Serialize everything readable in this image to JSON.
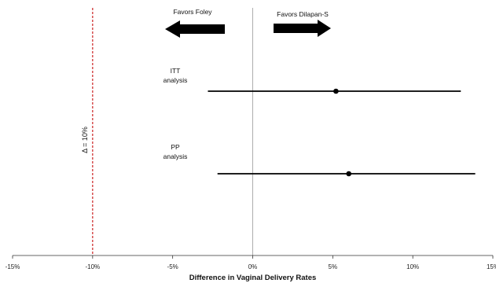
{
  "chart_data": {
    "type": "scatter",
    "subtype": "forest-plot",
    "xlabel": "Difference in Vaginal Delivery Rates",
    "xlim": [
      -15,
      15
    ],
    "xticks": [
      -15,
      -10,
      -5,
      0,
      5,
      10,
      15
    ],
    "xtick_labels": [
      "-15%",
      "-10%",
      "-5%",
      "0%",
      "5%",
      "10%",
      "15%"
    ],
    "grid": false,
    "reference_line": 0,
    "margin_line": {
      "x": -10,
      "label": "Δ = 10%",
      "color": "#cc2222",
      "style": "dashed"
    },
    "favor_labels": {
      "left": "Favors Foley",
      "right": "Favors Dilapan-S"
    },
    "rows": [
      {
        "label_line1": "ITT",
        "label_line2": "analysis",
        "estimate": 5.2,
        "ci": [
          -2.8,
          13.0
        ]
      },
      {
        "label_line1": "PP",
        "label_line2": "analysis",
        "estimate": 6.0,
        "ci": [
          -2.2,
          13.9
        ]
      }
    ]
  }
}
